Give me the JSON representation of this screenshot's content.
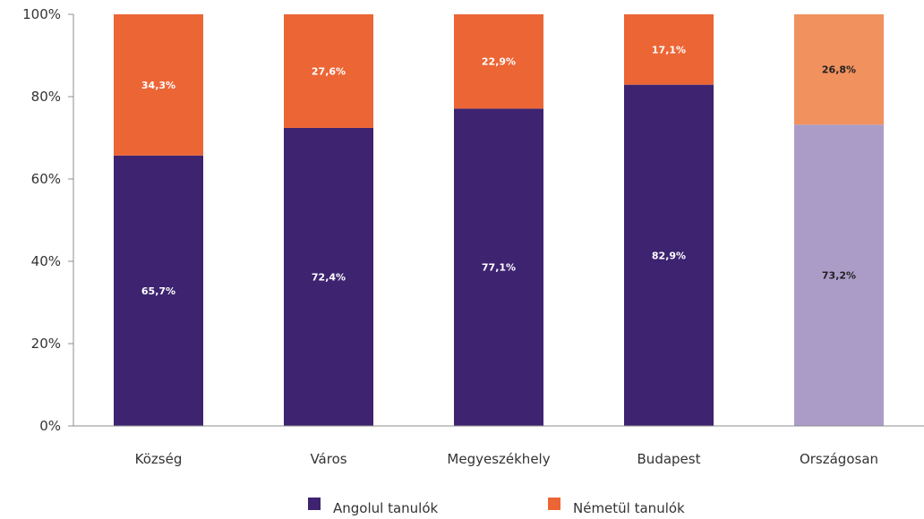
{
  "chart_data": {
    "type": "bar",
    "stacked": true,
    "categories": [
      "Község",
      "Város",
      "Megyeszékhely",
      "Budapest",
      "Országosan"
    ],
    "series": [
      {
        "name": "Angolul tanulók",
        "values": [
          65.7,
          72.4,
          77.1,
          82.9,
          73.2
        ],
        "labels": [
          "65,7%",
          "72,4%",
          "77,1%",
          "82,9%",
          "73,2%"
        ],
        "color": "#3d2370",
        "highlight_color": "#ab9cc7"
      },
      {
        "name": "Németül tanulók",
        "values": [
          34.3,
          27.6,
          22.9,
          17.1,
          26.8
        ],
        "labels": [
          "34,3%",
          "27,6%",
          "22,9%",
          "17,1%",
          "26,8%"
        ],
        "color": "#ec6535",
        "highlight_color": "#f0915e"
      }
    ],
    "highlight_category": "Országosan",
    "ylim": [
      0,
      100
    ],
    "yticks": [
      0,
      20,
      40,
      60,
      80,
      100
    ],
    "ytick_labels": [
      "0%",
      "20%",
      "40%",
      "60%",
      "80%",
      "100%"
    ],
    "grid": false,
    "legend_position": "bottom"
  }
}
